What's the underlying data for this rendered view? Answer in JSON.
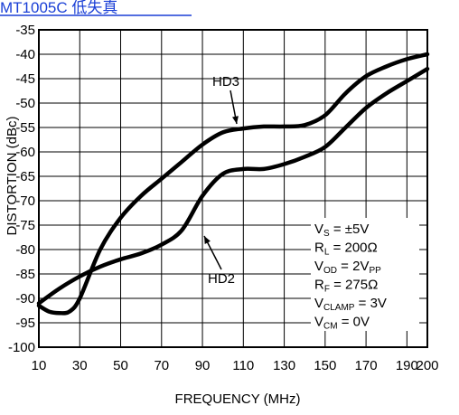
{
  "header_text": "MT1005C 低失真",
  "chart_data": {
    "type": "line",
    "xlabel": "FREQUENCY (MHz)",
    "ylabel": "DISTORTION (dBc)",
    "xlim": [
      10,
      200
    ],
    "ylim": [
      -100,
      -35
    ],
    "xticks": [
      10,
      30,
      50,
      70,
      90,
      110,
      130,
      150,
      170,
      190,
      200
    ],
    "yticks": [
      -35,
      -40,
      -45,
      -50,
      -55,
      -60,
      -65,
      -70,
      -75,
      -80,
      -85,
      -90,
      -95,
      -100
    ],
    "grid": true,
    "series": [
      {
        "name": "HD3",
        "x": [
          10,
          20,
          30,
          40,
          50,
          60,
          70,
          80,
          90,
          100,
          110,
          120,
          130,
          140,
          150,
          160,
          170,
          180,
          190,
          200
        ],
        "y": [
          -91,
          -88,
          -85.5,
          -83.5,
          -82,
          -80.8,
          -79,
          -76,
          -69,
          -64.5,
          -63.5,
          -63.5,
          -62.5,
          -61,
          -59,
          -55,
          -51,
          -48,
          -45.5,
          -43
        ]
      },
      {
        "name": "HD2",
        "x": [
          10,
          15,
          20,
          25,
          30,
          40,
          50,
          60,
          70,
          80,
          90,
          100,
          110,
          120,
          130,
          140,
          150,
          160,
          170,
          180,
          190,
          200
        ],
        "y": [
          -91.5,
          -92.7,
          -93,
          -92.7,
          -90,
          -80,
          -73.5,
          -69,
          -65.5,
          -62,
          -58.5,
          -56,
          -55.2,
          -54.8,
          -54.8,
          -54.5,
          -52.5,
          -48,
          -44.5,
          -42.5,
          -41,
          -40
        ]
      }
    ],
    "conditions": [
      {
        "main": "V",
        "sub": "S",
        "rest": " = ±5V"
      },
      {
        "main": "R",
        "sub": "L",
        "rest": " = 200Ω"
      },
      {
        "main": "V",
        "sub": "OD",
        "rest": " = 2V",
        "sub2": "PP"
      },
      {
        "main": "R",
        "sub": "F",
        "rest": " = 275Ω"
      },
      {
        "main": "V",
        "sub": "CLAMP",
        "rest": " = 3V"
      },
      {
        "main": "V",
        "sub": "CM",
        "rest": " = 0V"
      }
    ]
  }
}
